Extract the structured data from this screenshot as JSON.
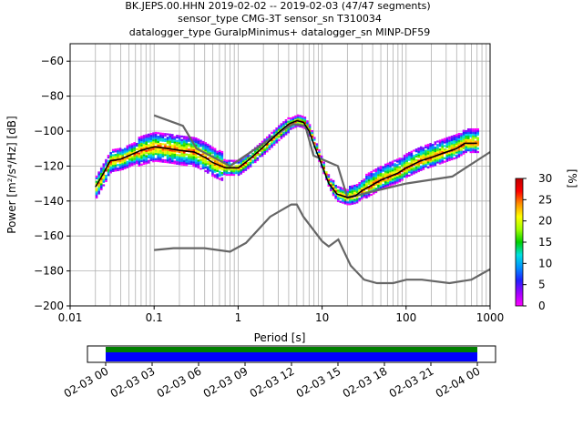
{
  "title_lines": [
    "BK.JEPS.00.HHN   2019-02-02 -- 2019-02-03  (47/47 segments)",
    "sensor_type CMG-3T sensor_sn T310034",
    "datalogger_type GuralpMinimus+ datalogger_sn MINP-DF59"
  ],
  "chart_data": {
    "type": "heatmap",
    "xlabel": "Period [s]",
    "ylabel": "Power [m²/s⁴/Hz] [dB]",
    "xscale": "log",
    "xlim": [
      0.01,
      1000
    ],
    "ylim": [
      -200,
      -50
    ],
    "xticks": [
      0.01,
      0.1,
      1,
      10,
      100,
      1000
    ],
    "xtick_labels": [
      "0.01",
      "0.1",
      "1",
      "10",
      "100",
      "1000"
    ],
    "yticks": [
      -200,
      -180,
      -160,
      -140,
      -120,
      -100,
      -80,
      -60
    ],
    "ytick_labels": [
      "−200",
      "−180",
      "−160",
      "−140",
      "−120",
      "−100",
      "−80",
      "−60"
    ],
    "grid": true,
    "mode_curve": [
      [
        0.02,
        -132
      ],
      [
        0.025,
        -124
      ],
      [
        0.03,
        -117
      ],
      [
        0.04,
        -116
      ],
      [
        0.05,
        -114
      ],
      [
        0.07,
        -111
      ],
      [
        0.1,
        -109
      ],
      [
        0.15,
        -110
      ],
      [
        0.2,
        -111
      ],
      [
        0.3,
        -112
      ],
      [
        0.4,
        -115
      ],
      [
        0.5,
        -118
      ],
      [
        0.7,
        -121
      ],
      [
        1.0,
        -121
      ],
      [
        1.3,
        -117
      ],
      [
        2.0,
        -109
      ],
      [
        3.0,
        -101
      ],
      [
        4.0,
        -96
      ],
      [
        5.0,
        -94
      ],
      [
        6.0,
        -95
      ],
      [
        7.0,
        -100
      ],
      [
        8.0,
        -108
      ],
      [
        10.0,
        -120
      ],
      [
        12.0,
        -130
      ],
      [
        15.0,
        -136
      ],
      [
        20.0,
        -138
      ],
      [
        25.0,
        -137
      ],
      [
        30.0,
        -134
      ],
      [
        50.0,
        -128
      ],
      [
        80.0,
        -124
      ],
      [
        100.0,
        -121
      ],
      [
        150.0,
        -117
      ],
      [
        200.0,
        -115
      ],
      [
        300.0,
        -112
      ],
      [
        400.0,
        -110
      ],
      [
        500.0,
        -107
      ],
      [
        700.0,
        -107
      ]
    ],
    "nhnm": [
      [
        0.1,
        -91
      ],
      [
        0.22,
        -97
      ],
      [
        0.32,
        -110
      ],
      [
        0.8,
        -120
      ],
      [
        3.8,
        -98
      ],
      [
        4.6,
        -96
      ],
      [
        6.3,
        -97
      ],
      [
        7.9,
        -114
      ],
      [
        15.4,
        -120
      ],
      [
        20.0,
        -138
      ],
      [
        100.0,
        -130
      ],
      [
        354.8,
        -126
      ],
      [
        1000.0,
        -112
      ]
    ],
    "nlnm": [
      [
        0.1,
        -168
      ],
      [
        0.17,
        -167
      ],
      [
        0.4,
        -167
      ],
      [
        0.8,
        -169
      ],
      [
        1.24,
        -164
      ],
      [
        2.4,
        -149
      ],
      [
        4.3,
        -142
      ],
      [
        5.0,
        -142
      ],
      [
        6.0,
        -149
      ],
      [
        10.0,
        -163
      ],
      [
        12.0,
        -166
      ],
      [
        15.6,
        -162
      ],
      [
        21.9,
        -177
      ],
      [
        31.6,
        -185
      ],
      [
        45.0,
        -187
      ],
      [
        70.0,
        -187
      ],
      [
        101.0,
        -185
      ],
      [
        154.0,
        -185
      ],
      [
        328.0,
        -187
      ],
      [
        600.0,
        -185
      ],
      [
        1000.0,
        -179
      ]
    ],
    "colorbar": {
      "label": "[%]",
      "ticks": [
        0,
        5,
        10,
        15,
        20,
        25,
        30
      ],
      "range": [
        0,
        30
      ],
      "colormap": [
        "#ff00ff",
        "#a000ff",
        "#2020ff",
        "#0090ff",
        "#00e0e0",
        "#00d000",
        "#a0ff00",
        "#ffff00",
        "#ff9000",
        "#ff0000",
        "#c00000"
      ]
    },
    "time_axis": {
      "tick_labels": [
        "02-03 00",
        "02-03 03",
        "02-03 06",
        "02-03 09",
        "02-03 12",
        "02-03 15",
        "02-03 18",
        "02-03 21",
        "02-04 00"
      ],
      "coverage_colors": [
        "#008000",
        "#0000ff"
      ]
    }
  }
}
